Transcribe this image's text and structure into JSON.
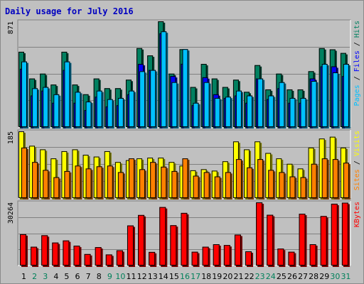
{
  "chart_data": {
    "type": "bar",
    "title": "Daily usage for July 2016",
    "categories": [
      "1",
      "2",
      "3",
      "4",
      "5",
      "6",
      "7",
      "8",
      "9",
      "10",
      "11",
      "12",
      "13",
      "14",
      "15",
      "16",
      "17",
      "18",
      "19",
      "20",
      "21",
      "22",
      "23",
      "24",
      "25",
      "26",
      "27",
      "28",
      "29",
      "30",
      "31"
    ],
    "weekend_days": [
      "2",
      "3",
      "9",
      "10",
      "16",
      "17",
      "23",
      "24",
      "30",
      "31"
    ],
    "panels": [
      {
        "name": "top",
        "ymax": 871,
        "label_parts": [
          {
            "text": "Pages",
            "color": "#00c0ff"
          },
          {
            "text": " / ",
            "color": "#000000"
          },
          {
            "text": "Files",
            "color": "#0000ff"
          },
          {
            "text": " / ",
            "color": "#000000"
          },
          {
            "text": "Hits",
            "color": "#008060"
          }
        ],
        "series": [
          {
            "name": "Hits",
            "color": "#008060",
            "values": [
              620,
              400,
              440,
              350,
              620,
              350,
              270,
              400,
              320,
              320,
              390,
              650,
              590,
              871,
              440,
              641,
              330,
              520,
              400,
              330,
              390,
              290,
              510,
              310,
              440,
              310,
              310,
              460,
              650,
              640,
              610
            ]
          },
          {
            "name": "Files",
            "color": "#0000ff",
            "values": [
              480,
              260,
              300,
              200,
              470,
              200,
              140,
              250,
              170,
              180,
              270,
              520,
              470,
              772,
              420,
              521,
              180,
              410,
              270,
              240,
              260,
              200,
              400,
              230,
              320,
              200,
              200,
              400,
              500,
              500,
              420
            ]
          },
          {
            "name": "Pages",
            "color": "#00c0ff",
            "values": [
              540,
              320,
              330,
              270,
              540,
              290,
              210,
              300,
              230,
              240,
              300,
              460,
              470,
              788,
              370,
              642,
              200,
              370,
              240,
              250,
              300,
              260,
              400,
              260,
              370,
              240,
              240,
              380,
              520,
              450,
              520
            ]
          }
        ]
      },
      {
        "name": "middle",
        "ymax": 185,
        "label_parts": [
          {
            "text": "Sites",
            "color": "#ff8000"
          },
          {
            "text": " / ",
            "color": "#000000"
          },
          {
            "text": "Visits",
            "color": "#ffff00"
          }
        ],
        "series": [
          {
            "name": "Visits",
            "color": "#ffff00",
            "values": [
              185,
              145,
              135,
              110,
              130,
              135,
              120,
              115,
              130,
              100,
              105,
              110,
              112,
              112,
              100,
              90,
              77,
              80,
              76,
              102,
              157,
              135,
              157,
              125,
              110,
              95,
              82,
              140,
              165,
              170,
              140
            ]
          },
          {
            "name": "Sites",
            "color": "#ff8000",
            "values": [
              140,
              100,
              78,
              58,
              75,
              90,
              82,
              88,
              90,
              72,
              110,
              80,
              100,
              87,
              75,
              110,
              62,
              72,
              60,
              72,
              108,
              85,
              108,
              78,
              72,
              60,
              58,
              95,
              110,
              108,
              98
            ]
          }
        ]
      },
      {
        "name": "bottom",
        "ymax": 30264,
        "label_parts": [
          {
            "text": "KBytes",
            "color": "#ff0000"
          }
        ],
        "series": [
          {
            "name": "KBytes",
            "color": "#ff0000",
            "values": [
              15000,
              9000,
              14500,
              11000,
              12000,
              9500,
              5500,
              8800,
              5300,
              7300,
              19200,
              24200,
              6500,
              28000,
              19300,
              25200,
              6600,
              9000,
              10200,
              9800,
              14800,
              6800,
              30264,
              24300,
              8100,
              6600,
              24800,
              10200,
              23700,
              29600,
              30100
            ]
          }
        ]
      }
    ]
  }
}
